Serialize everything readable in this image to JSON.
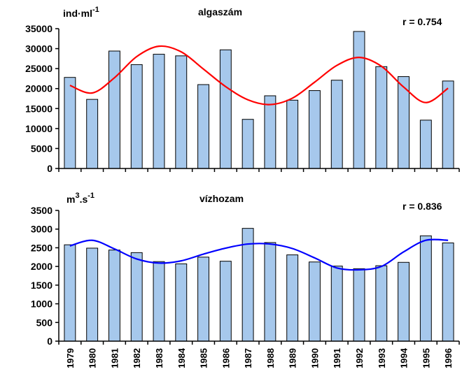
{
  "chart_data": [
    {
      "type": "bar",
      "title": "algaszám",
      "unit_label": "ind·ml",
      "unit_exponent": "-1",
      "annotation": "r = 0.754",
      "categories": [
        "1979",
        "1980",
        "1981",
        "1982",
        "1983",
        "1984",
        "1985",
        "1986",
        "1987",
        "1988",
        "1989",
        "1990",
        "1991",
        "1992",
        "1993",
        "1994",
        "1995",
        "1996"
      ],
      "values": [
        22800,
        17300,
        29400,
        26000,
        28600,
        28200,
        21000,
        29700,
        12300,
        18200,
        17100,
        19500,
        22100,
        34300,
        25500,
        23000,
        12100,
        21900
      ],
      "trend": [
        20800,
        18900,
        22700,
        28000,
        30600,
        29200,
        24900,
        20500,
        17200,
        16000,
        17600,
        21600,
        25800,
        27800,
        25600,
        20400,
        16500,
        20100
      ],
      "yticks": [
        0,
        5000,
        10000,
        15000,
        20000,
        25000,
        30000,
        35000
      ],
      "ylim": [
        0,
        35000
      ],
      "bar_color": "#a6c8ec",
      "trend_color": "#ff0000",
      "grid": false
    },
    {
      "type": "bar",
      "title": "vízhozam",
      "unit_label": "m",
      "unit_exponent_1": "3",
      "unit_mid": ".s",
      "unit_exponent": "-1",
      "annotation": "r = 0.836",
      "categories": [
        "1979",
        "1980",
        "1981",
        "1982",
        "1983",
        "1984",
        "1985",
        "1986",
        "1987",
        "1988",
        "1989",
        "1990",
        "1991",
        "1992",
        "1993",
        "1994",
        "1995",
        "1996"
      ],
      "values": [
        2580,
        2490,
        2440,
        2370,
        2130,
        2070,
        2250,
        2140,
        3020,
        2640,
        2310,
        2120,
        2010,
        1940,
        2020,
        2110,
        2820,
        2630
      ],
      "trend": [
        2550,
        2700,
        2470,
        2200,
        2090,
        2150,
        2330,
        2490,
        2600,
        2600,
        2480,
        2230,
        1960,
        1910,
        2000,
        2390,
        2700,
        2700
      ],
      "yticks": [
        0,
        500,
        1000,
        1500,
        2000,
        2500,
        3000,
        3500
      ],
      "ylim": [
        0,
        3500
      ],
      "bar_color": "#a6c8ec",
      "trend_color": "#0000ff",
      "grid": false
    }
  ]
}
